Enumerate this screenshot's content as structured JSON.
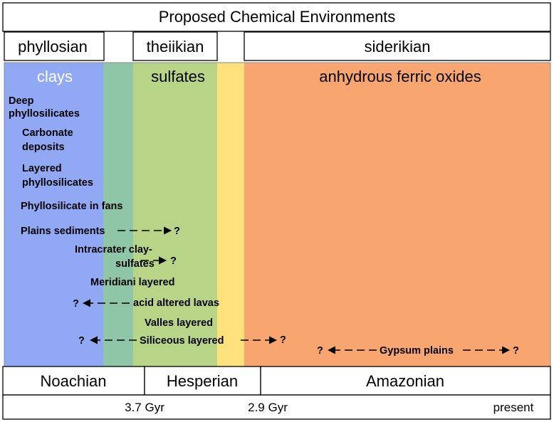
{
  "title": "Proposed Chemical Environments",
  "environments": [
    {
      "label": "phyllosian"
    },
    {
      "label": "theiikian"
    },
    {
      "label": "siderikian"
    }
  ],
  "bands": [
    "clays",
    "sulfates",
    "anhydrous ferric oxides"
  ],
  "deposits": [
    {
      "lines": [
        "Deep",
        "phyllosilicates"
      ]
    },
    {
      "lines": [
        "Carbonate",
        "deposits"
      ]
    },
    {
      "lines": [
        "Layered",
        "phyllosilicates"
      ]
    },
    {
      "lines": [
        "Phyllosilicate in fans"
      ]
    },
    {
      "lines": [
        "Plains sediments"
      ]
    },
    {
      "lines": [
        "Intracrater clay-",
        "sulfates"
      ]
    },
    {
      "lines": [
        "Meridiani layered"
      ]
    },
    {
      "lines": [
        "acid altered lavas"
      ]
    },
    {
      "lines": [
        "Valles layered"
      ]
    },
    {
      "lines": [
        "Siliceous layered"
      ]
    },
    {
      "lines": [
        "Gypsum plains"
      ]
    }
  ],
  "unknown": "?",
  "eras": [
    "Noachian",
    "Hesperian",
    "Amazonian"
  ],
  "times": [
    "3.7 Gyr",
    "2.9 Gyr",
    "present"
  ]
}
